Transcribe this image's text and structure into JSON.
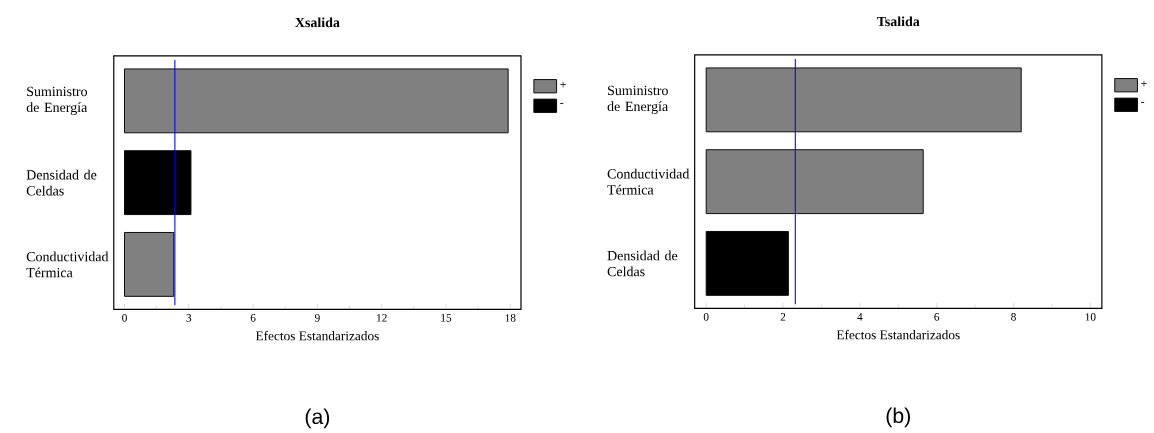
{
  "chart_data": [
    {
      "type": "bar",
      "orientation": "horizontal",
      "title": "Xsalida",
      "xlabel": "Efectos Estandarizados",
      "categories": [
        "Suministro de Energía",
        "Densidad de Celdas",
        "Conductividad Térmica"
      ],
      "series": [
        {
          "name": "+",
          "color": "#808080",
          "values": [
            17.9,
            null,
            2.3
          ]
        },
        {
          "name": "-",
          "color": "#000000",
          "values": [
            null,
            3.1,
            null
          ]
        }
      ],
      "xlim": [
        -0.5,
        18.5
      ],
      "xticks": [
        0,
        3,
        6,
        9,
        12,
        15,
        18
      ],
      "legend": "top right",
      "ref_lines": [
        {
          "axis": "x",
          "value": 2.35,
          "color": "#0000ff"
        }
      ],
      "annotations": [
        "(a)"
      ]
    },
    {
      "type": "bar",
      "orientation": "horizontal",
      "title": "Tsalida",
      "xlabel": "Efectos Estandarizados",
      "categories": [
        "Suministro de Energía",
        "Conductividad Térmica",
        "Densidad de Celdas"
      ],
      "series": [
        {
          "name": "+",
          "color": "#808080",
          "values": [
            8.2,
            5.65,
            null
          ]
        },
        {
          "name": "-",
          "color": "#000000",
          "values": [
            null,
            null,
            2.14
          ]
        }
      ],
      "xlim": [
        -0.3,
        10.3
      ],
      "xticks": [
        0,
        2,
        4,
        6,
        8,
        10
      ],
      "legend": "top right",
      "ref_lines": [
        {
          "axis": "x",
          "value": 2.32,
          "color": "#0000ff"
        }
      ],
      "annotations": [
        "(b)"
      ]
    }
  ]
}
